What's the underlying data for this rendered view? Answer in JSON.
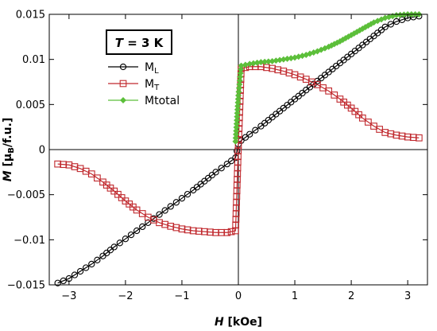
{
  "chart_data": {
    "type": "scatter",
    "title": "",
    "annotation": {
      "italic": "T",
      "rest": " = 3 K"
    },
    "xlabel": {
      "italic": "H",
      "unit": " [kOe]"
    },
    "ylabel": {
      "italic": "M",
      "unit": " [μ",
      "sub": "B",
      "unit2": "/f.u.]"
    },
    "xlim": [
      -3.35,
      3.35
    ],
    "ylim": [
      -0.015,
      0.015
    ],
    "xticks": [
      -3,
      -2,
      -1,
      0,
      1,
      2,
      3
    ],
    "xtick_labels": [
      "−3",
      "−2",
      "−1",
      "0",
      "1",
      "2",
      "3"
    ],
    "yticks": [
      -0.015,
      -0.01,
      -0.005,
      0,
      0.005,
      0.01,
      0.015
    ],
    "ytick_labels": [
      "−0.015",
      "−0.01",
      "−0.005",
      "0",
      "0.005",
      "0.01",
      "0.015"
    ],
    "grid": false,
    "legend_position": "top-left",
    "series": [
      {
        "name": "M",
        "name_sub": "L",
        "marker": "circle",
        "color": "#000000",
        "x": [
          -3.2,
          -3.0,
          -2.8,
          -2.6,
          -2.4,
          -2.2,
          -2.0,
          -1.8,
          -1.6,
          -1.4,
          -1.2,
          -1.0,
          -0.8,
          -0.6,
          -0.4,
          -0.2,
          -0.05,
          0.0,
          0.05,
          0.2,
          0.4,
          0.6,
          0.8,
          1.0,
          1.2,
          1.4,
          1.6,
          1.8,
          2.0,
          2.2,
          2.4,
          2.6,
          2.8,
          3.0,
          3.2
        ],
        "y": [
          -0.0148,
          -0.0143,
          -0.0135,
          -0.0127,
          -0.0118,
          -0.0108,
          -0.0099,
          -0.009,
          -0.0081,
          -0.0072,
          -0.0063,
          -0.0054,
          -0.0045,
          -0.0035,
          -0.0025,
          -0.0016,
          -0.0009,
          0.0006,
          0.001,
          0.0017,
          0.0026,
          0.0036,
          0.0046,
          0.0056,
          0.0066,
          0.0076,
          0.0086,
          0.0096,
          0.0106,
          0.0116,
          0.0126,
          0.0136,
          0.0142,
          0.0146,
          0.0148
        ]
      },
      {
        "name": "M",
        "name_sub": "T",
        "marker": "square",
        "color": "#c0282d",
        "x": [
          -3.2,
          -3.0,
          -2.8,
          -2.6,
          -2.4,
          -2.2,
          -2.0,
          -1.8,
          -1.6,
          -1.4,
          -1.2,
          -1.0,
          -0.8,
          -0.6,
          -0.4,
          -0.2,
          -0.05,
          0.0,
          0.05,
          0.2,
          0.4,
          0.6,
          0.8,
          1.0,
          1.2,
          1.4,
          1.6,
          1.8,
          2.0,
          2.2,
          2.4,
          2.6,
          2.8,
          3.0,
          3.2
        ],
        "y": [
          -0.0016,
          -0.0017,
          -0.0021,
          -0.0027,
          -0.0036,
          -0.0046,
          -0.0057,
          -0.0067,
          -0.0075,
          -0.0081,
          -0.0085,
          -0.0088,
          -0.009,
          -0.0091,
          -0.0092,
          -0.0092,
          -0.009,
          0.0005,
          0.009,
          0.0092,
          0.0092,
          0.009,
          0.0087,
          0.0083,
          0.0078,
          0.0072,
          0.0065,
          0.0056,
          0.0046,
          0.0035,
          0.0026,
          0.0019,
          0.0016,
          0.0014,
          0.0013
        ]
      },
      {
        "name": "Mtotal",
        "marker": "diamond",
        "color": "#5cbf3a",
        "x": [
          -0.05,
          0.0,
          0.05,
          0.2,
          0.4,
          0.6,
          0.8,
          1.0,
          1.2,
          1.4,
          1.6,
          1.8,
          2.0,
          2.2,
          2.4,
          2.6,
          2.8,
          3.0,
          3.2
        ],
        "y": [
          0.0009,
          0.006,
          0.0093,
          0.0095,
          0.0097,
          0.0098,
          0.01,
          0.0102,
          0.0105,
          0.0109,
          0.0114,
          0.012,
          0.0127,
          0.0134,
          0.0141,
          0.0146,
          0.0149,
          0.015,
          0.015
        ]
      }
    ]
  }
}
